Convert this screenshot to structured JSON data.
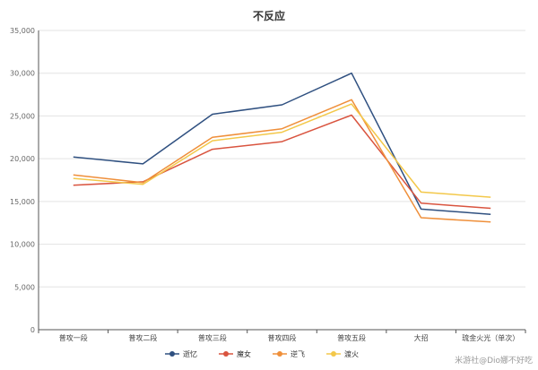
{
  "chart_data": {
    "type": "line",
    "title": "不反应",
    "xlabel": "",
    "ylabel": "",
    "categories": [
      "普攻一段",
      "普攻二段",
      "普攻三段",
      "普攻四段",
      "普攻五段",
      "大招",
      "琉金火光（单次）"
    ],
    "ylim": [
      0,
      35000
    ],
    "yticks": [
      "0",
      "5,000",
      "10,000",
      "15,000",
      "20,000",
      "25,000",
      "30,000",
      "35,000"
    ],
    "grid": true,
    "legend_position": "bottom",
    "series": [
      {
        "name": "逝忆",
        "color": "#2f5080",
        "values": [
          20200,
          19400,
          25200,
          26300,
          30000,
          14100,
          13500
        ]
      },
      {
        "name": "魔女",
        "color": "#d9543f",
        "values": [
          16900,
          17300,
          21100,
          22000,
          25100,
          14800,
          14200
        ]
      },
      {
        "name": "逆飞",
        "color": "#ef8f3a",
        "values": [
          18100,
          17200,
          22500,
          23500,
          26900,
          13100,
          12600
        ]
      },
      {
        "name": "渡火",
        "color": "#f3c84a",
        "values": [
          17700,
          17000,
          22100,
          23100,
          26400,
          16100,
          15500
        ]
      }
    ]
  },
  "watermark": "米游社@Dio娜不好吃"
}
